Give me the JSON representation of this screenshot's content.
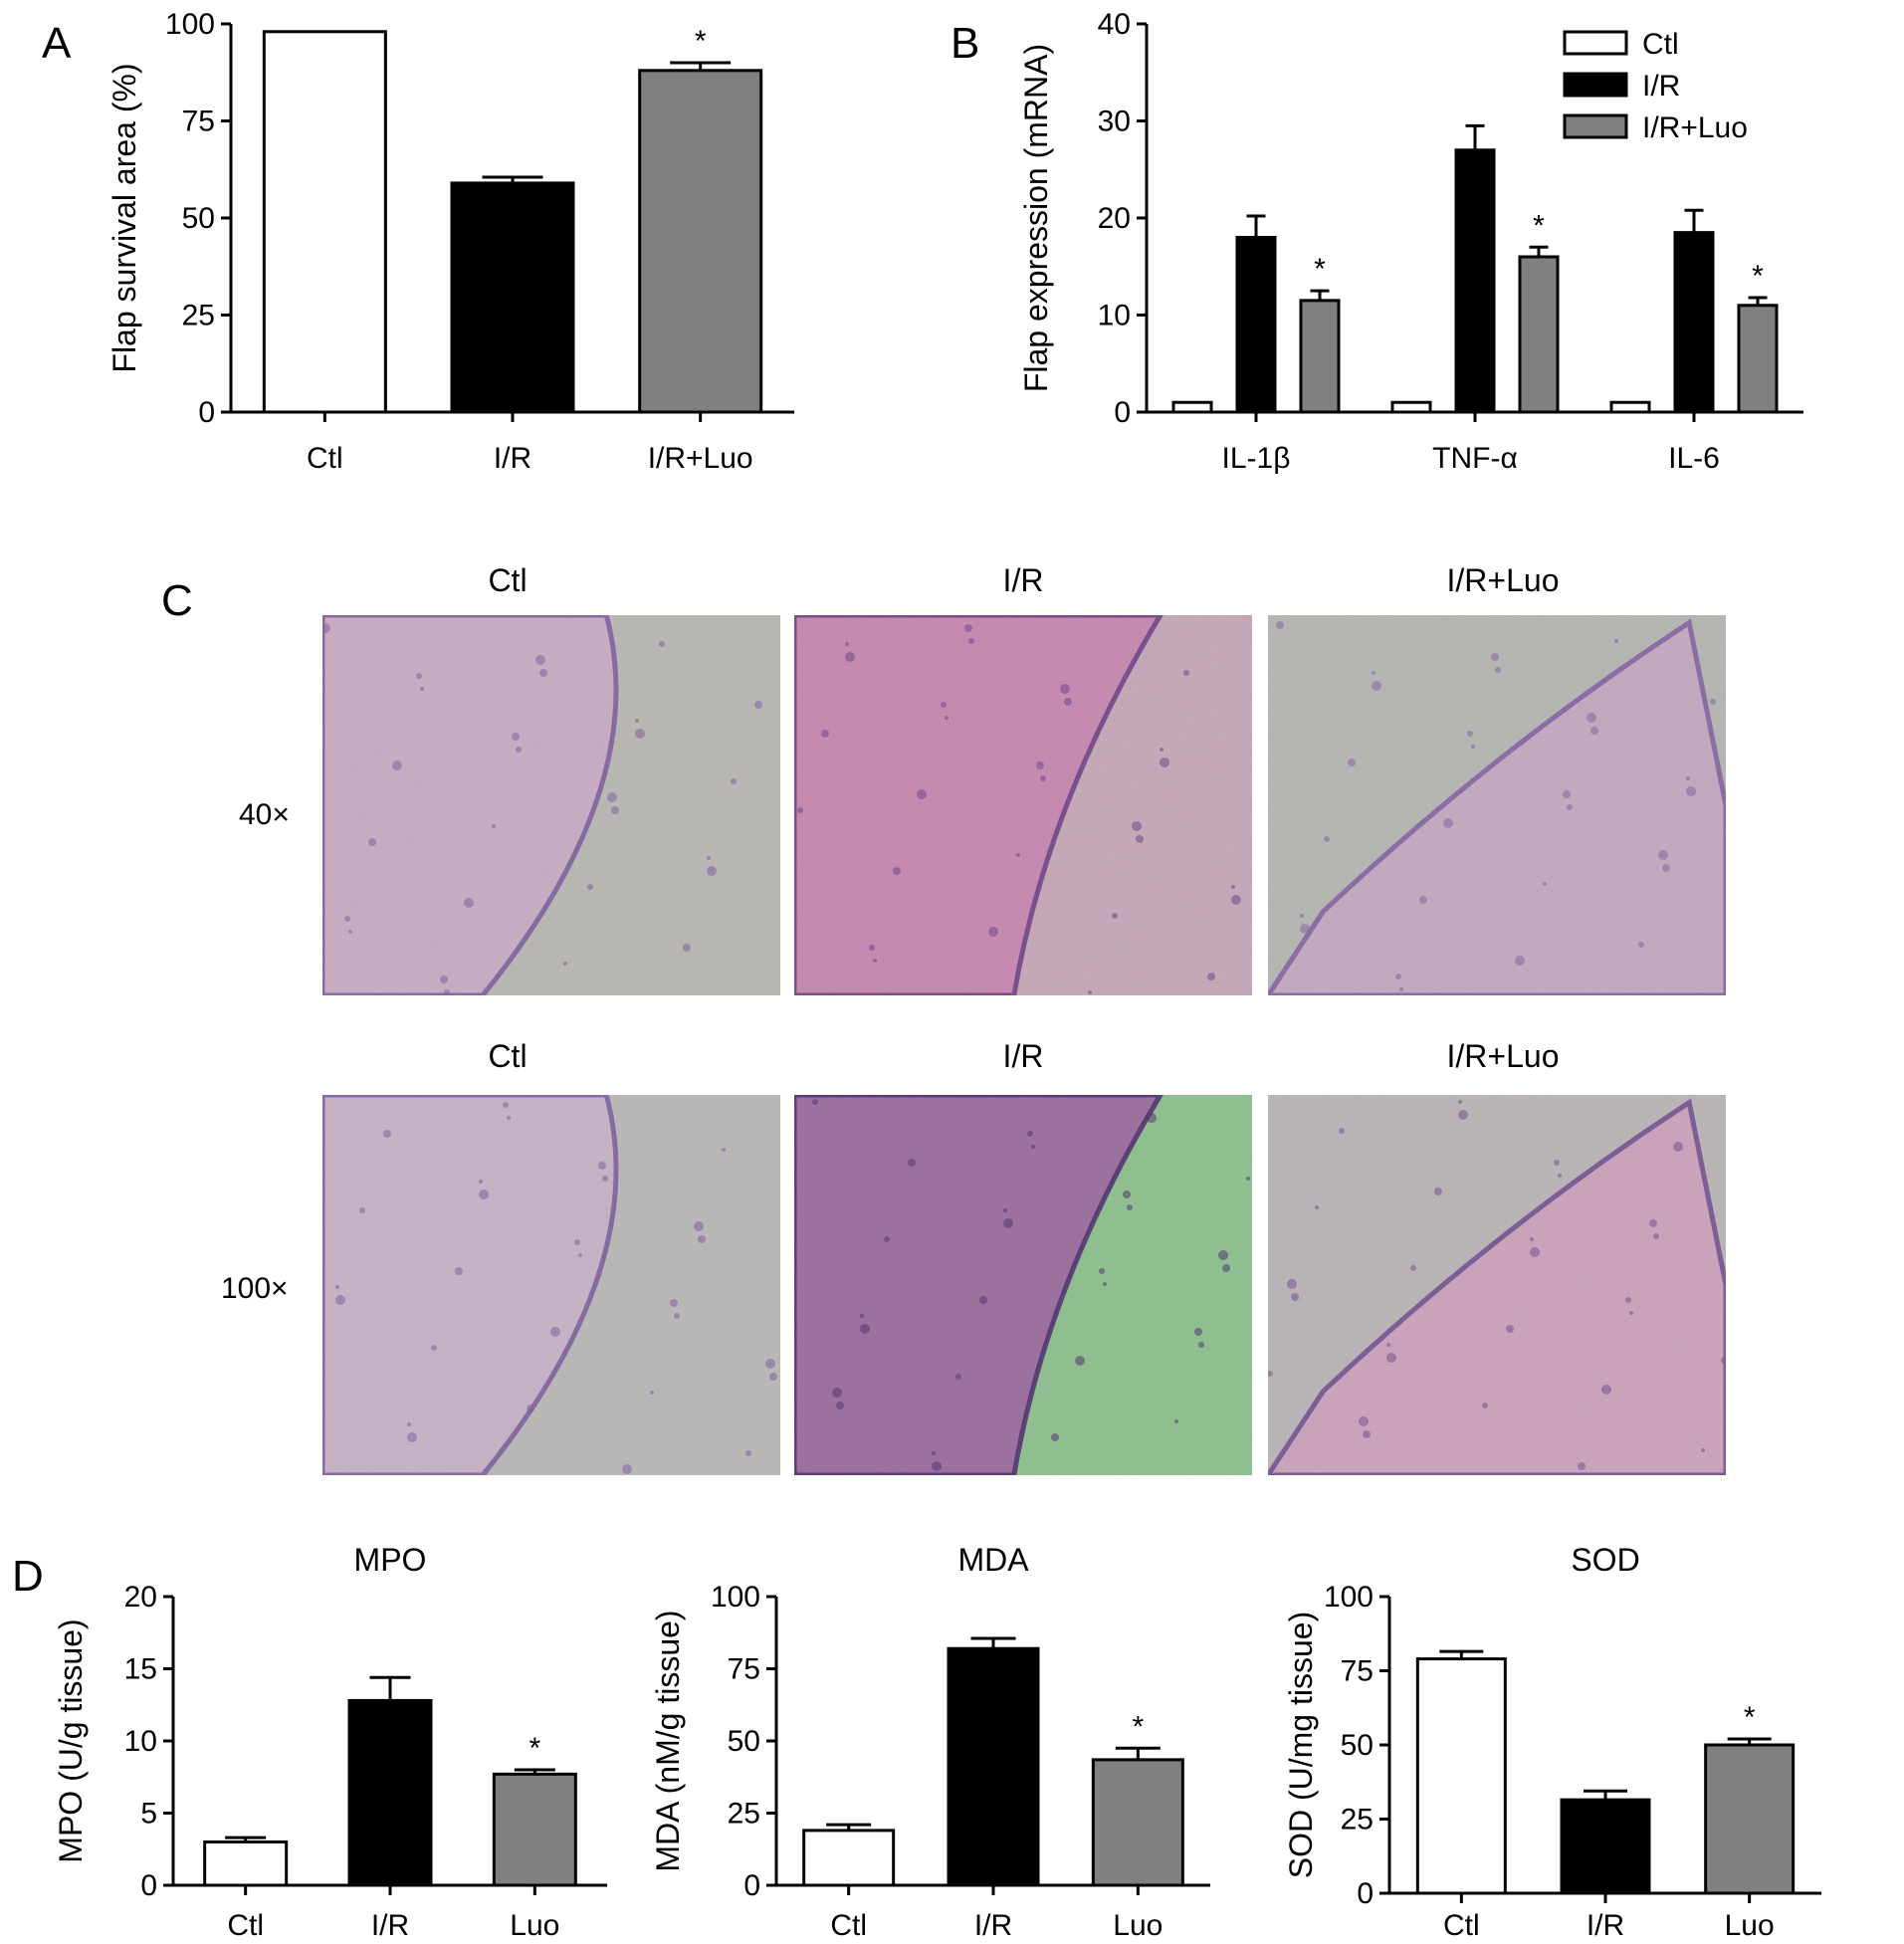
{
  "panel_letters": {
    "a": "A",
    "b": "B",
    "c": "C",
    "d": "D"
  },
  "colors": {
    "ctl": "#ffffff",
    "ir": "#000000",
    "luo": "#808080",
    "stroke": "#000000"
  },
  "chart_data": [
    {
      "panel": "A",
      "type": "bar",
      "ylabel": "Flap survival area (%)",
      "categories": [
        "Ctl",
        "I/R",
        "I/R+Luo"
      ],
      "values": [
        98,
        59,
        88
      ],
      "errors": [
        0,
        1.5,
        2
      ],
      "significance": [
        "",
        "",
        "*"
      ],
      "ylim": [
        0,
        100
      ],
      "yticks": [
        0,
        25,
        50,
        75,
        100
      ],
      "bar_colors": [
        "ctl",
        "ir",
        "luo"
      ]
    },
    {
      "panel": "B",
      "type": "bar",
      "ylabel": "Flap expression (mRNA)",
      "categories": [
        "IL-1β",
        "TNF-α",
        "IL-6"
      ],
      "series": [
        {
          "name": "Ctl",
          "color": "ctl",
          "values": [
            1,
            1,
            1
          ],
          "errors": [
            0,
            0,
            0
          ],
          "significance": [
            "",
            "",
            ""
          ]
        },
        {
          "name": "I/R",
          "color": "ir",
          "values": [
            18,
            27,
            18.5
          ],
          "errors": [
            2.2,
            2.5,
            2.3
          ],
          "significance": [
            "",
            "",
            ""
          ]
        },
        {
          "name": "I/R+Luo",
          "color": "luo",
          "values": [
            11.5,
            16,
            11
          ],
          "errors": [
            1,
            1,
            0.8
          ],
          "significance": [
            "*",
            "*",
            "*"
          ]
        }
      ],
      "ylim": [
        0,
        40
      ],
      "yticks": [
        0,
        10,
        20,
        30,
        40
      ],
      "legend_position": "top-right"
    },
    {
      "panel": "D",
      "type": "bar",
      "title": "MPO",
      "ylabel": "MPO (U/g tissue)",
      "categories": [
        "Ctl",
        "I/R",
        "Luo"
      ],
      "values": [
        3,
        12.8,
        7.7
      ],
      "errors": [
        0.3,
        1.6,
        0.3
      ],
      "significance": [
        "",
        "",
        "*"
      ],
      "ylim": [
        0,
        20
      ],
      "yticks": [
        0,
        5,
        10,
        15,
        20
      ],
      "bar_colors": [
        "ctl",
        "ir",
        "luo"
      ]
    },
    {
      "panel": "D",
      "type": "bar",
      "title": "MDA",
      "ylabel": "MDA (nM/g tissue)",
      "categories": [
        "Ctl",
        "I/R",
        "Luo"
      ],
      "values": [
        19,
        82,
        43.5
      ],
      "errors": [
        2,
        3.5,
        4
      ],
      "significance": [
        "",
        "",
        "*"
      ],
      "ylim": [
        0,
        100
      ],
      "yticks": [
        0,
        25,
        50,
        75,
        100
      ],
      "bar_colors": [
        "ctl",
        "ir",
        "luo"
      ]
    },
    {
      "panel": "D",
      "type": "bar",
      "title": "SOD",
      "ylabel": "SOD (U/mg tissue)",
      "categories": [
        "Ctl",
        "I/R",
        "Luo"
      ],
      "values": [
        79,
        31.5,
        50
      ],
      "errors": [
        2.5,
        3,
        2
      ],
      "significance": [
        "",
        "",
        "*"
      ],
      "ylim": [
        0,
        100
      ],
      "yticks": [
        0,
        25,
        50,
        75,
        100
      ],
      "bar_colors": [
        "ctl",
        "ir",
        "luo"
      ]
    }
  ],
  "histology": {
    "row_labels": [
      "40×",
      "100×"
    ],
    "column_titles": [
      "Ctl",
      "I/R",
      "I/R+Luo"
    ],
    "tiles": [
      {
        "row": 0,
        "col": 0,
        "base": "#b8b6b2",
        "tissue": "#c9a9c4",
        "edge": "#7b5a9c"
      },
      {
        "row": 0,
        "col": 1,
        "base": "#c4a6b7",
        "tissue": "#c77fae",
        "edge": "#6c3d86"
      },
      {
        "row": 0,
        "col": 2,
        "base": "#b4b5b1",
        "tissue": "#c6a4c0",
        "edge": "#805ea1"
      },
      {
        "row": 1,
        "col": 0,
        "base": "#b8b7b6",
        "tissue": "#c7b1c8",
        "edge": "#7a5a9c"
      },
      {
        "row": 1,
        "col": 1,
        "base": "#8bbf8c",
        "tissue": "#9a5a9e",
        "edge": "#4b2a6a"
      },
      {
        "row": 1,
        "col": 2,
        "base": "#b9b3b5",
        "tissue": "#cc9dbb",
        "edge": "#6e4b8f"
      }
    ]
  }
}
